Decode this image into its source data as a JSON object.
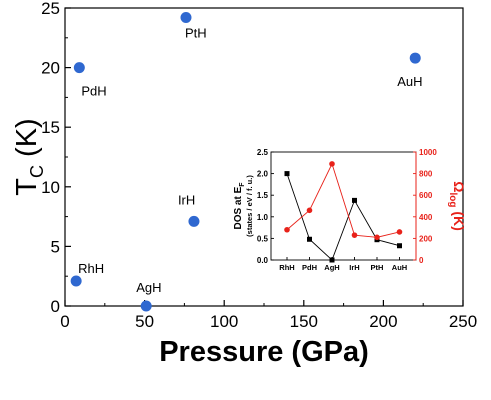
{
  "chart_data": [
    {
      "type": "scatter",
      "xlabel": "Pressure (GPa)",
      "ylabel_main": "T",
      "ylabel_sub": "C",
      "ylabel_unit": " (K)",
      "xlim": [
        0,
        250
      ],
      "ylim": [
        0,
        25
      ],
      "xticks": [
        "0",
        "50",
        "100",
        "150",
        "200",
        "250"
      ],
      "yticks": [
        "0",
        "5",
        "10",
        "15",
        "20",
        "25"
      ],
      "grid": false,
      "marker_color": "#2f68d0",
      "points": [
        {
          "label": "PdH",
          "x": 9,
          "y": 20.0
        },
        {
          "label": "PtH",
          "x": 76,
          "y": 24.2
        },
        {
          "label": "AuH",
          "x": 220,
          "y": 20.8
        },
        {
          "label": "IrH",
          "x": 81,
          "y": 7.1
        },
        {
          "label": "RhH",
          "x": 7,
          "y": 2.1
        },
        {
          "label": "AgH",
          "x": 51,
          "y": 0.0
        }
      ]
    },
    {
      "type": "line",
      "categories": [
        "RhH",
        "PdH",
        "AgH",
        "IrH",
        "PtH",
        "AuH"
      ],
      "ylabel_left_line1": "DOS at E",
      "ylabel_left_sub": "F",
      "ylabel_left_line2": "(states / eV / f. u.)",
      "ylabel_right_main": "Ω",
      "ylabel_right_sub": "log",
      "ylabel_right_unit": " (K)",
      "ylim_left": [
        0,
        2.5
      ],
      "ylim_right": [
        0,
        1000
      ],
      "yticks_left": [
        "0.0",
        "0.5",
        "1.0",
        "1.5",
        "2.0",
        "2.5"
      ],
      "yticks_right": [
        "0",
        "200",
        "400",
        "600",
        "800",
        "1000"
      ],
      "left_color": "#000000",
      "right_color": "#e8221a",
      "series": [
        {
          "axis": "left",
          "values": [
            2.0,
            0.48,
            0.0,
            1.38,
            0.47,
            0.33
          ]
        },
        {
          "axis": "right",
          "values": [
            280,
            460,
            890,
            230,
            210,
            260
          ]
        }
      ]
    }
  ]
}
